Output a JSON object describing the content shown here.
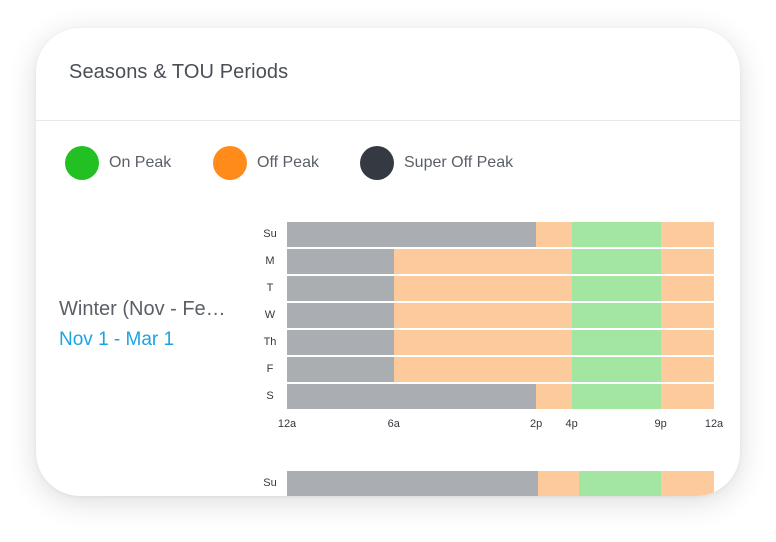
{
  "colors": {
    "on_peak": "#22c022",
    "off_peak": "#ff8c1a",
    "super_off_peak": "#353941",
    "on_peak_fill": "#a2e6a2",
    "off_peak_fill": "#fdcb9b",
    "super_off_peak_fill": "#aaadb1",
    "dates_link": "#1da3e0"
  },
  "header": {
    "title": "Seasons & TOU Periods"
  },
  "legend": [
    {
      "label": "On Peak",
      "color": "#22c022"
    },
    {
      "label": "Off Peak",
      "color": "#ff8c1a"
    },
    {
      "label": "Super Off Peak",
      "color": "#353941"
    }
  ],
  "seasons": [
    {
      "name": "Winter (Nov - Fe…",
      "dates": "Nov 1 - Mar 1",
      "tick_labels": [
        "12a",
        "6a",
        "2p",
        "4p",
        "9p",
        "12a"
      ],
      "days": [
        {
          "label": "Su",
          "periods": [
            {
              "type": "super_off_peak",
              "start": 0,
              "end": 14
            },
            {
              "type": "off_peak",
              "start": 14,
              "end": 16
            },
            {
              "type": "on_peak",
              "start": 16,
              "end": 21
            },
            {
              "type": "off_peak",
              "start": 21,
              "end": 24
            }
          ]
        },
        {
          "label": "M",
          "periods": [
            {
              "type": "super_off_peak",
              "start": 0,
              "end": 6
            },
            {
              "type": "off_peak",
              "start": 6,
              "end": 16
            },
            {
              "type": "on_peak",
              "start": 16,
              "end": 21
            },
            {
              "type": "off_peak",
              "start": 21,
              "end": 24
            }
          ]
        },
        {
          "label": "T",
          "periods": [
            {
              "type": "super_off_peak",
              "start": 0,
              "end": 6
            },
            {
              "type": "off_peak",
              "start": 6,
              "end": 16
            },
            {
              "type": "on_peak",
              "start": 16,
              "end": 21
            },
            {
              "type": "off_peak",
              "start": 21,
              "end": 24
            }
          ]
        },
        {
          "label": "W",
          "periods": [
            {
              "type": "super_off_peak",
              "start": 0,
              "end": 6
            },
            {
              "type": "off_peak",
              "start": 6,
              "end": 16
            },
            {
              "type": "on_peak",
              "start": 16,
              "end": 21
            },
            {
              "type": "off_peak",
              "start": 21,
              "end": 24
            }
          ]
        },
        {
          "label": "Th",
          "periods": [
            {
              "type": "super_off_peak",
              "start": 0,
              "end": 6
            },
            {
              "type": "off_peak",
              "start": 6,
              "end": 16
            },
            {
              "type": "on_peak",
              "start": 16,
              "end": 21
            },
            {
              "type": "off_peak",
              "start": 21,
              "end": 24
            }
          ]
        },
        {
          "label": "F",
          "periods": [
            {
              "type": "super_off_peak",
              "start": 0,
              "end": 6
            },
            {
              "type": "off_peak",
              "start": 6,
              "end": 16
            },
            {
              "type": "on_peak",
              "start": 16,
              "end": 21
            },
            {
              "type": "off_peak",
              "start": 21,
              "end": 24
            }
          ]
        },
        {
          "label": "S",
          "periods": [
            {
              "type": "super_off_peak",
              "start": 0,
              "end": 14
            },
            {
              "type": "off_peak",
              "start": 14,
              "end": 16
            },
            {
              "type": "on_peak",
              "start": 16,
              "end": 21
            },
            {
              "type": "off_peak",
              "start": 21,
              "end": 24
            }
          ]
        }
      ]
    },
    {
      "name": "",
      "dates": "",
      "tick_labels": [],
      "days": [
        {
          "label": "Su",
          "periods": [
            {
              "type": "super_off_peak",
              "start": 0,
              "end": 14.1
            },
            {
              "type": "off_peak",
              "start": 14.1,
              "end": 16.4
            },
            {
              "type": "on_peak",
              "start": 16.4,
              "end": 21
            },
            {
              "type": "off_peak",
              "start": 21,
              "end": 24
            }
          ]
        }
      ]
    }
  ]
}
